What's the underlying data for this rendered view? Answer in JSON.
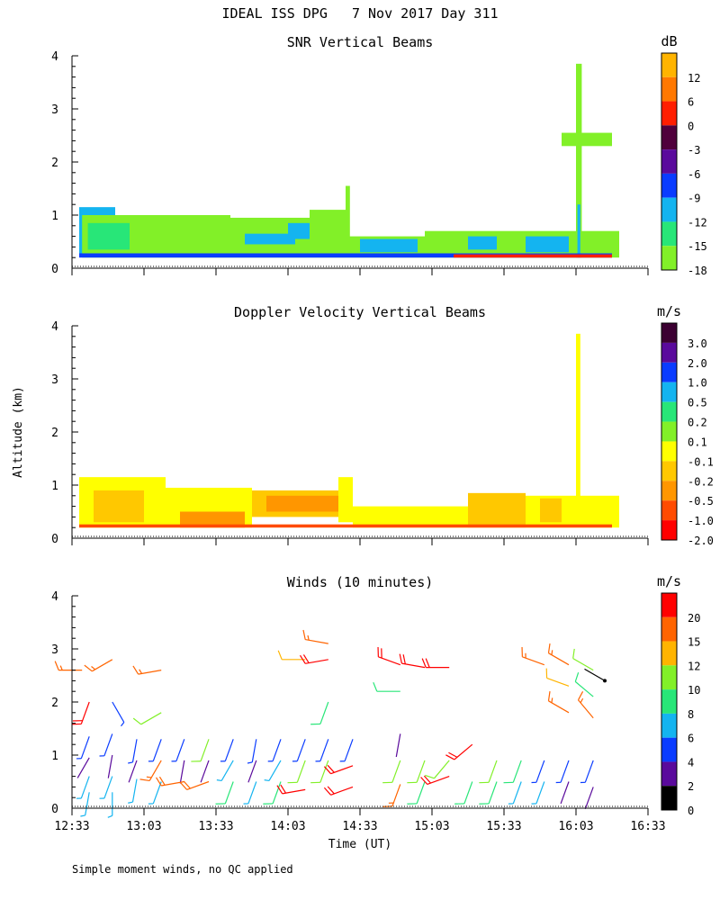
{
  "page_title": "IDEAL ISS DPG   7 Nov 2017 Day 311",
  "footer_note": "Simple moment winds, no QC applied",
  "shared": {
    "ylabel": "Altitude (km)",
    "xlabel": "Time (UT)",
    "x_ticks": [
      "12:33",
      "13:03",
      "13:33",
      "14:03",
      "14:33",
      "15:03",
      "15:33",
      "16:03",
      "16:33"
    ],
    "y_ticks": [
      "0",
      "1",
      "2",
      "3",
      "4"
    ]
  },
  "chart_data": [
    {
      "type": "heatmap",
      "title": "SNR Vertical Beams",
      "xlabel": "",
      "ylabel": "Altitude (km)",
      "xlim_hours": [
        12.55,
        16.55
      ],
      "ylim": [
        0,
        4
      ],
      "colorbar": {
        "unit": "dB",
        "labels": [
          "12",
          "6",
          "0",
          "-3",
          "-6",
          "-9",
          "-12",
          "-15",
          "-18"
        ],
        "colors": [
          "#ffb400",
          "#ff7800",
          "#ff1e00",
          "#50003c",
          "#5a0a9c",
          "#0a3cff",
          "#14b4f0",
          "#28e678",
          "#82f028"
        ]
      },
      "regions": [
        {
          "t0": 12.6,
          "t1": 12.85,
          "alt0": 0.25,
          "alt1": 1.15,
          "color": "#14b4f0"
        },
        {
          "t0": 12.62,
          "t1": 13.1,
          "alt0": 0.2,
          "alt1": 1.0,
          "color": "#82f028"
        },
        {
          "t0": 12.66,
          "t1": 12.95,
          "alt0": 0.35,
          "alt1": 0.85,
          "color": "#28e678"
        },
        {
          "t0": 13.1,
          "t1": 13.65,
          "alt0": 0.2,
          "alt1": 1.0,
          "color": "#82f028"
        },
        {
          "t0": 13.65,
          "t1": 14.2,
          "alt0": 0.2,
          "alt1": 0.95,
          "color": "#82f028"
        },
        {
          "t0": 13.75,
          "t1": 14.1,
          "alt0": 0.45,
          "alt1": 0.65,
          "color": "#14b4f0"
        },
        {
          "t0": 14.05,
          "t1": 14.4,
          "alt0": 0.55,
          "alt1": 0.85,
          "color": "#14b4f0"
        },
        {
          "t0": 14.2,
          "t1": 14.45,
          "alt0": 0.2,
          "alt1": 1.1,
          "color": "#82f028"
        },
        {
          "t0": 14.45,
          "t1": 15.0,
          "alt0": 0.2,
          "alt1": 0.6,
          "color": "#82f028"
        },
        {
          "t0": 14.55,
          "t1": 14.95,
          "alt0": 0.3,
          "alt1": 0.55,
          "color": "#14b4f0"
        },
        {
          "t0": 15.0,
          "t1": 15.7,
          "alt0": 0.2,
          "alt1": 0.7,
          "color": "#82f028"
        },
        {
          "t0": 15.3,
          "t1": 15.5,
          "alt0": 0.35,
          "alt1": 0.6,
          "color": "#14b4f0"
        },
        {
          "t0": 15.7,
          "t1": 16.35,
          "alt0": 0.2,
          "alt1": 0.7,
          "color": "#82f028"
        },
        {
          "t0": 15.7,
          "t1": 16.0,
          "alt0": 0.3,
          "alt1": 0.6,
          "color": "#14b4f0"
        },
        {
          "t0": 16.05,
          "t1": 16.09,
          "alt0": 0.2,
          "alt1": 3.85,
          "color": "#82f028"
        },
        {
          "t0": 16.06,
          "t1": 16.08,
          "alt0": 0.2,
          "alt1": 1.2,
          "color": "#14b4f0"
        },
        {
          "t0": 15.95,
          "t1": 16.3,
          "alt0": 2.3,
          "alt1": 2.55,
          "color": "#82f028"
        },
        {
          "t0": 14.45,
          "t1": 14.48,
          "alt0": 0.5,
          "alt1": 1.55,
          "color": "#82f028"
        },
        {
          "t0": 12.6,
          "t1": 16.3,
          "alt0": 0.2,
          "alt1": 0.28,
          "color": "#0a3cff"
        },
        {
          "t0": 15.2,
          "t1": 16.3,
          "alt0": 0.2,
          "alt1": 0.26,
          "color": "#ff1e00"
        }
      ]
    },
    {
      "type": "heatmap",
      "title": "Doppler Velocity Vertical Beams",
      "xlabel": "",
      "ylabel": "Altitude (km)",
      "xlim_hours": [
        12.55,
        16.55
      ],
      "ylim": [
        0,
        4
      ],
      "colorbar": {
        "unit": "m/s",
        "labels": [
          "3.0",
          "2.0",
          "1.0",
          "0.5",
          "0.2",
          "0.1",
          "-0.1",
          "-0.2",
          "-0.5",
          "-1.0",
          "-2.0"
        ],
        "colors": [
          "#3c0032",
          "#5a0a9c",
          "#0a3cff",
          "#14b4f0",
          "#28e678",
          "#82f028",
          "#ffff00",
          "#ffc800",
          "#ff9600",
          "#ff4b00",
          "#ff0000"
        ]
      },
      "regions": [
        {
          "t0": 12.6,
          "t1": 13.2,
          "alt0": 0.2,
          "alt1": 1.15,
          "color": "#ffff00"
        },
        {
          "t0": 12.7,
          "t1": 13.05,
          "alt0": 0.3,
          "alt1": 0.9,
          "color": "#ffc800"
        },
        {
          "t0": 13.2,
          "t1": 13.8,
          "alt0": 0.2,
          "alt1": 0.95,
          "color": "#ffff00"
        },
        {
          "t0": 13.3,
          "t1": 13.75,
          "alt0": 0.2,
          "alt1": 0.5,
          "color": "#ff9600"
        },
        {
          "t0": 13.8,
          "t1": 14.4,
          "alt0": 0.4,
          "alt1": 0.9,
          "color": "#ffc800"
        },
        {
          "t0": 13.9,
          "t1": 14.4,
          "alt0": 0.5,
          "alt1": 0.8,
          "color": "#ff9600"
        },
        {
          "t0": 14.4,
          "t1": 14.5,
          "alt0": 0.3,
          "alt1": 1.15,
          "color": "#ffff00"
        },
        {
          "t0": 14.5,
          "t1": 15.3,
          "alt0": 0.2,
          "alt1": 0.6,
          "color": "#ffff00"
        },
        {
          "t0": 15.3,
          "t1": 15.7,
          "alt0": 0.2,
          "alt1": 0.85,
          "color": "#ffc800"
        },
        {
          "t0": 15.7,
          "t1": 16.35,
          "alt0": 0.2,
          "alt1": 0.8,
          "color": "#ffff00"
        },
        {
          "t0": 15.8,
          "t1": 15.95,
          "alt0": 0.3,
          "alt1": 0.75,
          "color": "#ffc800"
        },
        {
          "t0": 16.05,
          "t1": 16.08,
          "alt0": 0.6,
          "alt1": 3.85,
          "color": "#ffff00"
        },
        {
          "t0": 12.6,
          "t1": 16.3,
          "alt0": 0.2,
          "alt1": 0.26,
          "color": "#ff4b00"
        }
      ]
    },
    {
      "type": "wind_barbs",
      "title": "Winds (10 minutes)",
      "xlabel": "Time (UT)",
      "ylabel": "Altitude (km)",
      "xlim_hours": [
        12.55,
        16.55
      ],
      "ylim": [
        0,
        4
      ],
      "colorbar": {
        "unit": "m/s",
        "labels": [
          "20",
          "15",
          "12",
          "10",
          "8",
          "6",
          "4",
          "2",
          "0"
        ],
        "colors": [
          "#ff0000",
          "#ff6400",
          "#ffb400",
          "#82f028",
          "#28e678",
          "#14b4f0",
          "#0a3cff",
          "#5a0a9c",
          "#000000"
        ]
      },
      "barbs": [
        {
          "t": 12.67,
          "alt": 1.35,
          "dir": 200,
          "spd": 4
        },
        {
          "t": 12.67,
          "alt": 0.95,
          "dir": 210,
          "spd": 2
        },
        {
          "t": 12.67,
          "alt": 0.6,
          "dir": 200,
          "spd": 6
        },
        {
          "t": 12.67,
          "alt": 0.3,
          "dir": 190,
          "spd": 6
        },
        {
          "t": 12.83,
          "alt": 1.4,
          "dir": 200,
          "spd": 4
        },
        {
          "t": 12.83,
          "alt": 1.0,
          "dir": 190,
          "spd": 2
        },
        {
          "t": 12.83,
          "alt": 0.6,
          "dir": 200,
          "spd": 6
        },
        {
          "t": 12.83,
          "alt": 0.3,
          "dir": 180,
          "spd": 6
        },
        {
          "t": 13.0,
          "alt": 1.3,
          "dir": 190,
          "spd": 4
        },
        {
          "t": 13.0,
          "alt": 0.9,
          "dir": 200,
          "spd": 2
        },
        {
          "t": 13.0,
          "alt": 0.55,
          "dir": 190,
          "spd": 6
        },
        {
          "t": 13.17,
          "alt": 1.3,
          "dir": 200,
          "spd": 4
        },
        {
          "t": 13.17,
          "alt": 0.9,
          "dir": 210,
          "spd": 15
        },
        {
          "t": 13.17,
          "alt": 0.5,
          "dir": 200,
          "spd": 6
        },
        {
          "t": 13.33,
          "alt": 1.3,
          "dir": 200,
          "spd": 4
        },
        {
          "t": 13.33,
          "alt": 0.9,
          "dir": 190,
          "spd": 2
        },
        {
          "t": 13.33,
          "alt": 0.5,
          "dir": 260,
          "spd": 18
        },
        {
          "t": 13.5,
          "alt": 1.3,
          "dir": 200,
          "spd": 10
        },
        {
          "t": 13.5,
          "alt": 0.9,
          "dir": 200,
          "spd": 2
        },
        {
          "t": 13.5,
          "alt": 0.5,
          "dir": 250,
          "spd": 18
        },
        {
          "t": 13.67,
          "alt": 1.3,
          "dir": 200,
          "spd": 4
        },
        {
          "t": 13.67,
          "alt": 0.9,
          "dir": 210,
          "spd": 6
        },
        {
          "t": 13.67,
          "alt": 0.5,
          "dir": 200,
          "spd": 8
        },
        {
          "t": 13.83,
          "alt": 1.3,
          "dir": 190,
          "spd": 4
        },
        {
          "t": 13.83,
          "alt": 0.9,
          "dir": 200,
          "spd": 2
        },
        {
          "t": 13.83,
          "alt": 0.5,
          "dir": 200,
          "spd": 6
        },
        {
          "t": 14.0,
          "alt": 1.3,
          "dir": 200,
          "spd": 4
        },
        {
          "t": 14.0,
          "alt": 0.9,
          "dir": 210,
          "spd": 6
        },
        {
          "t": 14.0,
          "alt": 0.5,
          "dir": 200,
          "spd": 8
        },
        {
          "t": 14.17,
          "alt": 1.3,
          "dir": 200,
          "spd": 4
        },
        {
          "t": 14.17,
          "alt": 0.9,
          "dir": 200,
          "spd": 10
        },
        {
          "t": 14.17,
          "alt": 0.35,
          "dir": 260,
          "spd": 20
        },
        {
          "t": 14.33,
          "alt": 1.3,
          "dir": 200,
          "spd": 4
        },
        {
          "t": 14.33,
          "alt": 0.9,
          "dir": 200,
          "spd": 10
        },
        {
          "t": 14.5,
          "alt": 1.3,
          "dir": 200,
          "spd": 4
        },
        {
          "t": 14.5,
          "alt": 0.8,
          "dir": 250,
          "spd": 20
        },
        {
          "t": 14.5,
          "alt": 0.4,
          "dir": 250,
          "spd": 20
        },
        {
          "t": 14.83,
          "alt": 1.4,
          "dir": 190,
          "spd": 2
        },
        {
          "t": 14.83,
          "alt": 0.9,
          "dir": 200,
          "spd": 10
        },
        {
          "t": 14.83,
          "alt": 0.45,
          "dir": 200,
          "spd": 15
        },
        {
          "t": 15.0,
          "alt": 0.9,
          "dir": 200,
          "spd": 10
        },
        {
          "t": 15.0,
          "alt": 0.5,
          "dir": 200,
          "spd": 8
        },
        {
          "t": 15.17,
          "alt": 0.9,
          "dir": 220,
          "spd": 10
        },
        {
          "t": 15.17,
          "alt": 0.6,
          "dir": 250,
          "spd": 20
        },
        {
          "t": 15.33,
          "alt": 1.2,
          "dir": 230,
          "spd": 20
        },
        {
          "t": 15.33,
          "alt": 0.5,
          "dir": 200,
          "spd": 8
        },
        {
          "t": 15.5,
          "alt": 0.9,
          "dir": 200,
          "spd": 10
        },
        {
          "t": 15.5,
          "alt": 0.5,
          "dir": 200,
          "spd": 8
        },
        {
          "t": 15.67,
          "alt": 0.9,
          "dir": 200,
          "spd": 8
        },
        {
          "t": 15.67,
          "alt": 0.5,
          "dir": 200,
          "spd": 6
        },
        {
          "t": 15.83,
          "alt": 0.9,
          "dir": 200,
          "spd": 4
        },
        {
          "t": 15.83,
          "alt": 0.5,
          "dir": 200,
          "spd": 6
        },
        {
          "t": 16.0,
          "alt": 0.9,
          "dir": 200,
          "spd": 4
        },
        {
          "t": 16.0,
          "alt": 0.5,
          "dir": 200,
          "spd": 2
        },
        {
          "t": 16.17,
          "alt": 0.9,
          "dir": 200,
          "spd": 4
        },
        {
          "t": 16.17,
          "alt": 0.4,
          "dir": 200,
          "spd": 2
        },
        {
          "t": 12.62,
          "alt": 2.6,
          "dir": 270,
          "spd": 15
        },
        {
          "t": 12.67,
          "alt": 2.0,
          "dir": 200,
          "spd": 20
        },
        {
          "t": 12.83,
          "alt": 2.8,
          "dir": 240,
          "spd": 15
        },
        {
          "t": 12.83,
          "alt": 2.0,
          "dir": 150,
          "spd": 4
        },
        {
          "t": 13.17,
          "alt": 2.6,
          "dir": 260,
          "spd": 15
        },
        {
          "t": 13.17,
          "alt": 1.8,
          "dir": 240,
          "spd": 10
        },
        {
          "t": 14.17,
          "alt": 2.8,
          "dir": 270,
          "spd": 12
        },
        {
          "t": 14.33,
          "alt": 3.1,
          "dir": 280,
          "spd": 15
        },
        {
          "t": 14.33,
          "alt": 2.8,
          "dir": 260,
          "spd": 20
        },
        {
          "t": 14.33,
          "alt": 2.0,
          "dir": 200,
          "spd": 8
        },
        {
          "t": 14.83,
          "alt": 2.7,
          "dir": 290,
          "spd": 20
        },
        {
          "t": 14.83,
          "alt": 2.2,
          "dir": 270,
          "spd": 8
        },
        {
          "t": 15.0,
          "alt": 2.65,
          "dir": 280,
          "spd": 20
        },
        {
          "t": 15.17,
          "alt": 2.65,
          "dir": 270,
          "spd": 20
        },
        {
          "t": 15.83,
          "alt": 2.7,
          "dir": 290,
          "spd": 15
        },
        {
          "t": 16.0,
          "alt": 2.7,
          "dir": 300,
          "spd": 15
        },
        {
          "t": 16.0,
          "alt": 2.3,
          "dir": 290,
          "spd": 12
        },
        {
          "t": 16.0,
          "alt": 1.8,
          "dir": 300,
          "spd": 15
        },
        {
          "t": 16.17,
          "alt": 2.6,
          "dir": 300,
          "spd": 10
        },
        {
          "t": 16.17,
          "alt": 2.1,
          "dir": 310,
          "spd": 8
        },
        {
          "t": 16.17,
          "alt": 1.7,
          "dir": 320,
          "spd": 15
        },
        {
          "t": 16.25,
          "alt": 2.4,
          "dir": 300,
          "spd": 0
        }
      ]
    }
  ]
}
